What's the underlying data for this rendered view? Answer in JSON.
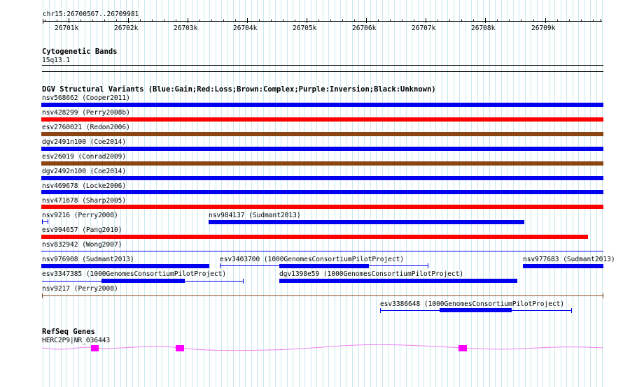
{
  "ruler": {
    "position_label": "chr15:26700567..26709981",
    "ticks": [
      "26701k",
      "26702k",
      "26703k",
      "26704k",
      "26705k",
      "26706k",
      "26707k",
      "26708k",
      "26709k"
    ]
  },
  "cytoband": {
    "title": "Cytogenetic Bands",
    "band_label": "15q13.1"
  },
  "dgv": {
    "title": "DGV Structural Variants (Blue:Gain;Red:Loss;Brown:Complex;Purple:Inversion;Black:Unknown)",
    "colors": {
      "gain": "#0000ee",
      "loss": "#ff0000",
      "complex": "#8b4513",
      "unknown": "#000000"
    },
    "features": [
      {
        "label": "nsv568662 (Cooper2011)",
        "type": "gain"
      },
      {
        "label": "nsv428299 (Perry2008b)",
        "type": "loss"
      },
      {
        "label": "esv2760021 (Redon2006)",
        "type": "complex"
      },
      {
        "label": "dgv2491n100 (Coe2014)",
        "type": "gain"
      },
      {
        "label": "esv26019 (Conrad2009)",
        "type": "complex"
      },
      {
        "label": "dgv2492n100 (Coe2014)",
        "type": "gain"
      },
      {
        "label": "nsv469678 (Locke2006)",
        "type": "gain"
      },
      {
        "label": "nsv471678 (Sharp2005)",
        "type": "loss"
      },
      {
        "label": "nsv9216 (Perry2008)",
        "type": "gain"
      },
      {
        "label": "nsv984137 (Sudmant2013)",
        "type": "gain"
      },
      {
        "label": "esv994657 (Pang2010)",
        "type": "loss"
      },
      {
        "label": "nsv832942 (Wong2007)",
        "type": "gain"
      },
      {
        "label": "nsv976908 (Sudmant2013)",
        "type": "gain"
      },
      {
        "label": "esv3403700 (1000GenomesConsortiumPilotProject)",
        "type": "gain"
      },
      {
        "label": "nsv977683 (Sudmant2013)",
        "type": "gain"
      },
      {
        "label": "esv3347385 (1000GenomesConsortiumPilotProject)",
        "type": "gain"
      },
      {
        "label": "dgv1398e59 (1000GenomesConsortiumPilotProject)",
        "type": "gain"
      },
      {
        "label": "nsv9217 (Perry2008)",
        "type": "complex"
      },
      {
        "label": "esv3386648 (1000GenomesConsortiumPilotProject)",
        "type": "gain"
      }
    ]
  },
  "refseq": {
    "title": "RefSeq Genes",
    "gene_label": "HERC2P9|NR_036443",
    "colors": {
      "intron": "#ee82ee",
      "exon": "#ff00ff"
    }
  },
  "colors": {
    "grid": "#c8e8ee",
    "track_line": "#000000"
  }
}
